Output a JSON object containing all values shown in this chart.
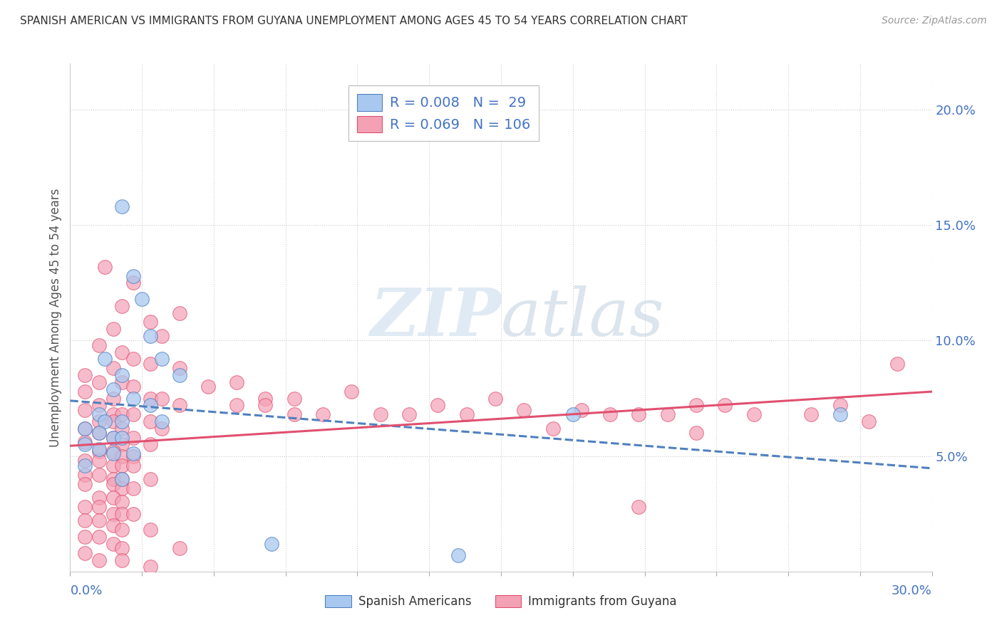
{
  "title": "SPANISH AMERICAN VS IMMIGRANTS FROM GUYANA UNEMPLOYMENT AMONG AGES 45 TO 54 YEARS CORRELATION CHART",
  "source": "Source: ZipAtlas.com",
  "ylabel_label": "Unemployment Among Ages 45 to 54 years",
  "legend_blue_r": "R = 0.008",
  "legend_blue_n": "N =  29",
  "legend_pink_r": "R = 0.069",
  "legend_pink_n": "N = 106",
  "xlim": [
    0.0,
    0.3
  ],
  "ylim": [
    0.0,
    0.22
  ],
  "blue_color": "#A8C8F0",
  "pink_color": "#F4A0B5",
  "trendline_blue_color": "#5080C0",
  "trendline_pink_color": "#E05070",
  "watermark_zip": "ZIP",
  "watermark_atlas": "atlas",
  "blue_scatter": [
    [
      0.018,
      0.158
    ],
    [
      0.022,
      0.128
    ],
    [
      0.025,
      0.118
    ],
    [
      0.028,
      0.102
    ],
    [
      0.012,
      0.092
    ],
    [
      0.032,
      0.092
    ],
    [
      0.018,
      0.085
    ],
    [
      0.038,
      0.085
    ],
    [
      0.015,
      0.079
    ],
    [
      0.022,
      0.075
    ],
    [
      0.028,
      0.072
    ],
    [
      0.01,
      0.068
    ],
    [
      0.012,
      0.065
    ],
    [
      0.018,
      0.065
    ],
    [
      0.032,
      0.065
    ],
    [
      0.005,
      0.062
    ],
    [
      0.01,
      0.06
    ],
    [
      0.015,
      0.058
    ],
    [
      0.018,
      0.058
    ],
    [
      0.005,
      0.055
    ],
    [
      0.01,
      0.053
    ],
    [
      0.015,
      0.051
    ],
    [
      0.022,
      0.051
    ],
    [
      0.005,
      0.046
    ],
    [
      0.018,
      0.04
    ],
    [
      0.175,
      0.068
    ],
    [
      0.268,
      0.068
    ],
    [
      0.07,
      0.012
    ],
    [
      0.135,
      0.007
    ]
  ],
  "pink_scatter": [
    [
      0.012,
      0.132
    ],
    [
      0.022,
      0.125
    ],
    [
      0.018,
      0.115
    ],
    [
      0.038,
      0.112
    ],
    [
      0.028,
      0.108
    ],
    [
      0.015,
      0.105
    ],
    [
      0.032,
      0.102
    ],
    [
      0.01,
      0.098
    ],
    [
      0.018,
      0.095
    ],
    [
      0.022,
      0.092
    ],
    [
      0.028,
      0.09
    ],
    [
      0.015,
      0.088
    ],
    [
      0.038,
      0.088
    ],
    [
      0.005,
      0.085
    ],
    [
      0.01,
      0.082
    ],
    [
      0.018,
      0.082
    ],
    [
      0.022,
      0.08
    ],
    [
      0.005,
      0.078
    ],
    [
      0.015,
      0.075
    ],
    [
      0.028,
      0.075
    ],
    [
      0.032,
      0.075
    ],
    [
      0.01,
      0.072
    ],
    [
      0.038,
      0.072
    ],
    [
      0.005,
      0.07
    ],
    [
      0.015,
      0.068
    ],
    [
      0.018,
      0.068
    ],
    [
      0.022,
      0.068
    ],
    [
      0.01,
      0.065
    ],
    [
      0.015,
      0.065
    ],
    [
      0.028,
      0.065
    ],
    [
      0.005,
      0.062
    ],
    [
      0.018,
      0.062
    ],
    [
      0.032,
      0.062
    ],
    [
      0.01,
      0.06
    ],
    [
      0.015,
      0.058
    ],
    [
      0.022,
      0.058
    ],
    [
      0.005,
      0.056
    ],
    [
      0.018,
      0.055
    ],
    [
      0.028,
      0.055
    ],
    [
      0.01,
      0.052
    ],
    [
      0.015,
      0.052
    ],
    [
      0.018,
      0.05
    ],
    [
      0.022,
      0.05
    ],
    [
      0.005,
      0.048
    ],
    [
      0.01,
      0.048
    ],
    [
      0.015,
      0.046
    ],
    [
      0.018,
      0.046
    ],
    [
      0.022,
      0.046
    ],
    [
      0.005,
      0.042
    ],
    [
      0.01,
      0.042
    ],
    [
      0.015,
      0.04
    ],
    [
      0.018,
      0.04
    ],
    [
      0.028,
      0.04
    ],
    [
      0.005,
      0.038
    ],
    [
      0.015,
      0.038
    ],
    [
      0.018,
      0.036
    ],
    [
      0.022,
      0.036
    ],
    [
      0.01,
      0.032
    ],
    [
      0.015,
      0.032
    ],
    [
      0.018,
      0.03
    ],
    [
      0.005,
      0.028
    ],
    [
      0.01,
      0.028
    ],
    [
      0.015,
      0.025
    ],
    [
      0.018,
      0.025
    ],
    [
      0.022,
      0.025
    ],
    [
      0.005,
      0.022
    ],
    [
      0.01,
      0.022
    ],
    [
      0.015,
      0.02
    ],
    [
      0.018,
      0.018
    ],
    [
      0.028,
      0.018
    ],
    [
      0.005,
      0.015
    ],
    [
      0.01,
      0.015
    ],
    [
      0.015,
      0.012
    ],
    [
      0.018,
      0.01
    ],
    [
      0.038,
      0.01
    ],
    [
      0.005,
      0.008
    ],
    [
      0.01,
      0.005
    ],
    [
      0.018,
      0.005
    ],
    [
      0.028,
      0.002
    ],
    [
      0.048,
      0.08
    ],
    [
      0.058,
      0.082
    ],
    [
      0.068,
      0.075
    ],
    [
      0.068,
      0.072
    ],
    [
      0.078,
      0.075
    ],
    [
      0.088,
      0.068
    ],
    [
      0.098,
      0.078
    ],
    [
      0.118,
      0.068
    ],
    [
      0.128,
      0.072
    ],
    [
      0.148,
      0.075
    ],
    [
      0.158,
      0.07
    ],
    [
      0.178,
      0.07
    ],
    [
      0.198,
      0.068
    ],
    [
      0.218,
      0.072
    ],
    [
      0.238,
      0.068
    ],
    [
      0.258,
      0.068
    ],
    [
      0.268,
      0.072
    ],
    [
      0.278,
      0.065
    ],
    [
      0.058,
      0.072
    ],
    [
      0.078,
      0.068
    ],
    [
      0.108,
      0.068
    ],
    [
      0.138,
      0.068
    ],
    [
      0.168,
      0.062
    ],
    [
      0.188,
      0.068
    ],
    [
      0.208,
      0.068
    ],
    [
      0.228,
      0.072
    ],
    [
      0.288,
      0.09
    ],
    [
      0.198,
      0.028
    ],
    [
      0.218,
      0.06
    ]
  ]
}
